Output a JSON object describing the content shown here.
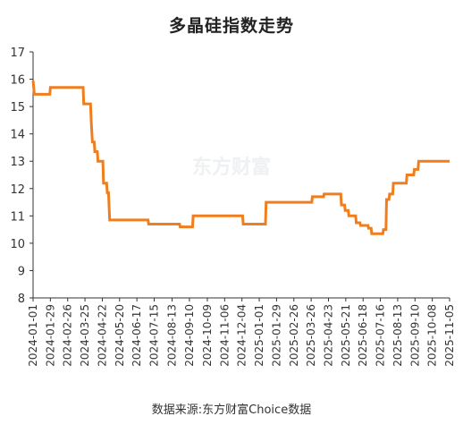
{
  "title": "多晶硅指数走势",
  "source": "数据来源:东方财富Choice数据",
  "watermark": "东方财富",
  "chart_data": {
    "type": "line",
    "title": "多晶硅指数走势",
    "x_tick_labels": [
      "2024-01-01",
      "2024-01-29",
      "2024-02-26",
      "2024-03-25",
      "2024-04-22",
      "2024-05-20",
      "2024-06-17",
      "2024-07-15",
      "2024-08-13",
      "2024-09-10",
      "2024-10-09",
      "2024-11-06",
      "2024-12-04",
      "2025-01-01",
      "2025-01-29",
      "2025-02-26",
      "2025-03-26",
      "2025-04-23",
      "2025-05-21",
      "2025-06-18",
      "2025-07-16",
      "2025-08-13",
      "2025-09-10",
      "2025-10-08",
      "2025-11-05"
    ],
    "yticks": [
      8,
      9,
      10,
      11,
      12,
      13,
      14,
      15,
      16,
      17
    ],
    "ylim": [
      8,
      17
    ],
    "xlim": [
      "2024-01-01",
      "2025-11-05"
    ],
    "grid": false,
    "color": "#f07e1e",
    "series": [
      {
        "values": [
          [
            "2024-01-01",
            15.95
          ],
          [
            "2024-01-03",
            15.45
          ],
          [
            "2024-01-28",
            15.45
          ],
          [
            "2024-01-29",
            15.7
          ],
          [
            "2024-03-22",
            15.7
          ],
          [
            "2024-03-23",
            15.1
          ],
          [
            "2024-04-03",
            15.1
          ],
          [
            "2024-04-04",
            14.5
          ],
          [
            "2024-04-06",
            13.7
          ],
          [
            "2024-04-09",
            13.7
          ],
          [
            "2024-04-10",
            13.35
          ],
          [
            "2024-04-14",
            13.35
          ],
          [
            "2024-04-15",
            13.0
          ],
          [
            "2024-04-23",
            13.0
          ],
          [
            "2024-04-24",
            12.2
          ],
          [
            "2024-04-29",
            12.2
          ],
          [
            "2024-04-30",
            11.85
          ],
          [
            "2024-05-02",
            11.85
          ],
          [
            "2024-05-04",
            10.85
          ],
          [
            "2024-07-05",
            10.85
          ],
          [
            "2024-07-06",
            10.7
          ],
          [
            "2024-08-25",
            10.7
          ],
          [
            "2024-08-26",
            10.6
          ],
          [
            "2024-09-15",
            10.6
          ],
          [
            "2024-09-16",
            11.0
          ],
          [
            "2024-12-05",
            11.0
          ],
          [
            "2024-12-06",
            10.7
          ],
          [
            "2025-01-11",
            10.7
          ],
          [
            "2025-01-12",
            11.5
          ],
          [
            "2025-03-27",
            11.5
          ],
          [
            "2025-03-28",
            11.7
          ],
          [
            "2025-04-15",
            11.7
          ],
          [
            "2025-04-16",
            11.8
          ],
          [
            "2025-05-13",
            11.8
          ],
          [
            "2025-05-14",
            11.4
          ],
          [
            "2025-05-19",
            11.4
          ],
          [
            "2025-05-20",
            11.2
          ],
          [
            "2025-05-25",
            11.2
          ],
          [
            "2025-05-26",
            11.0
          ],
          [
            "2025-06-06",
            11.0
          ],
          [
            "2025-06-07",
            10.75
          ],
          [
            "2025-06-13",
            10.75
          ],
          [
            "2025-06-14",
            10.65
          ],
          [
            "2025-06-26",
            10.65
          ],
          [
            "2025-06-27",
            10.55
          ],
          [
            "2025-07-01",
            10.55
          ],
          [
            "2025-07-02",
            10.35
          ],
          [
            "2025-07-20",
            10.35
          ],
          [
            "2025-07-21",
            10.5
          ],
          [
            "2025-07-25",
            10.5
          ],
          [
            "2025-07-26",
            11.6
          ],
          [
            "2025-07-30",
            11.6
          ],
          [
            "2025-07-31",
            11.8
          ],
          [
            "2025-08-05",
            11.8
          ],
          [
            "2025-08-06",
            12.2
          ],
          [
            "2025-08-27",
            12.2
          ],
          [
            "2025-08-28",
            12.5
          ],
          [
            "2025-09-08",
            12.5
          ],
          [
            "2025-09-09",
            12.7
          ],
          [
            "2025-09-15",
            12.7
          ],
          [
            "2025-09-16",
            13.0
          ],
          [
            "2025-11-05",
            13.0
          ]
        ]
      }
    ]
  }
}
